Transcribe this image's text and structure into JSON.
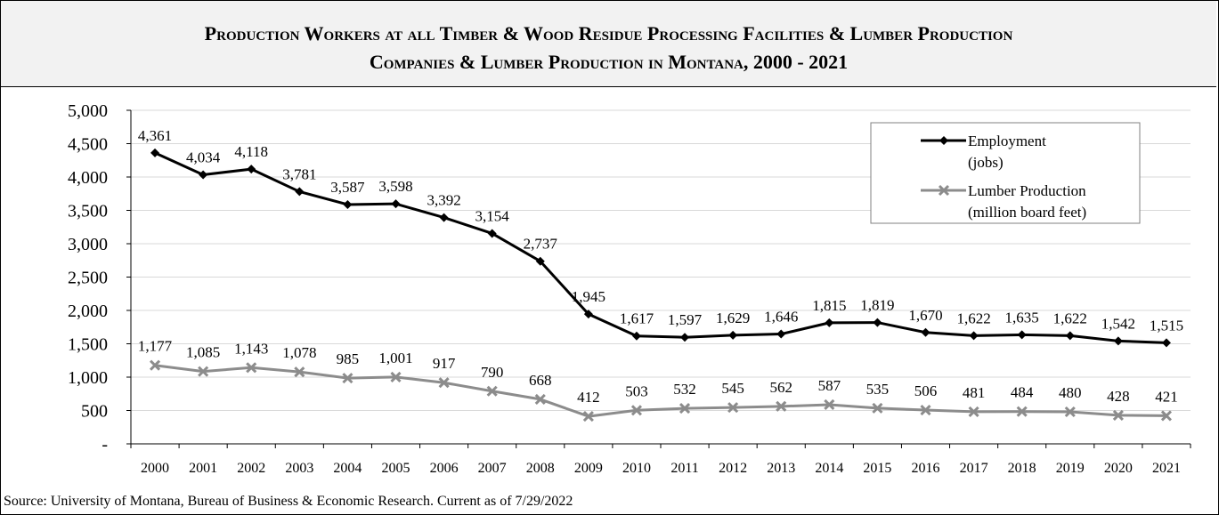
{
  "chart_data": {
    "type": "line",
    "title_line1": "Production Workers at all Timber & Wood Residue Processing Facilities  & Lumber Production",
    "title_line2": "Companies & Lumber Production in Montana, 2000 - 2021",
    "categories": [
      "2000",
      "2001",
      "2002",
      "2003",
      "2004",
      "2005",
      "2006",
      "2007",
      "2008",
      "2009",
      "2010",
      "2011",
      "2012",
      "2013",
      "2014",
      "2015",
      "2016",
      "2017",
      "2018",
      "2019",
      "2020",
      "2021"
    ],
    "series": [
      {
        "name": "Employment (jobs)",
        "legend_lines": [
          "Employment",
          "(jobs)"
        ],
        "color": "#000000",
        "marker": "diamond",
        "values": [
          4361,
          4034,
          4118,
          3781,
          3587,
          3598,
          3392,
          3154,
          2737,
          1945,
          1617,
          1597,
          1629,
          1646,
          1815,
          1819,
          1670,
          1622,
          1635,
          1622,
          1542,
          1515
        ],
        "labels": [
          "4,361",
          "4,034",
          "4,118",
          "3,781",
          "3,587",
          "3,598",
          "3,392",
          "3,154",
          "2,737",
          "1,945",
          "1,617",
          "1,597",
          "1,629",
          "1,646",
          "1,815",
          "1,819",
          "1,670",
          "1,622",
          "1,635",
          "1,622",
          "1,542",
          "1,515"
        ]
      },
      {
        "name": "Lumber Production (million board feet)",
        "legend_lines": [
          "Lumber Production",
          "(million board feet)"
        ],
        "color": "#8c8c8c",
        "marker": "x",
        "values": [
          1177,
          1085,
          1143,
          1078,
          985,
          1001,
          917,
          790,
          668,
          412,
          503,
          532,
          545,
          562,
          587,
          535,
          506,
          481,
          484,
          480,
          428,
          421
        ],
        "labels": [
          "1,177",
          "1,085",
          "1,143",
          "1,078",
          "985",
          "1,001",
          "917",
          "790",
          "668",
          "412",
          "503",
          "532",
          "545",
          "562",
          "587",
          "535",
          "506",
          "481",
          "484",
          "480",
          "428",
          "421"
        ]
      }
    ],
    "ylim": [
      0,
      5000
    ],
    "yticks": [
      0,
      500,
      1000,
      1500,
      2000,
      2500,
      3000,
      3500,
      4000,
      4500,
      5000
    ],
    "ytick_labels": [
      "-",
      "500",
      "1,000",
      "1,500",
      "2,000",
      "2,500",
      "3,000",
      "3,500",
      "4,000",
      "4,500",
      "5,000"
    ],
    "xlabel": "",
    "ylabel": "",
    "grid": true,
    "legend_position": "top-right"
  },
  "source": "Source: University of Montana, Bureau of Business & Economic Research. Current as of 7/29/2022"
}
